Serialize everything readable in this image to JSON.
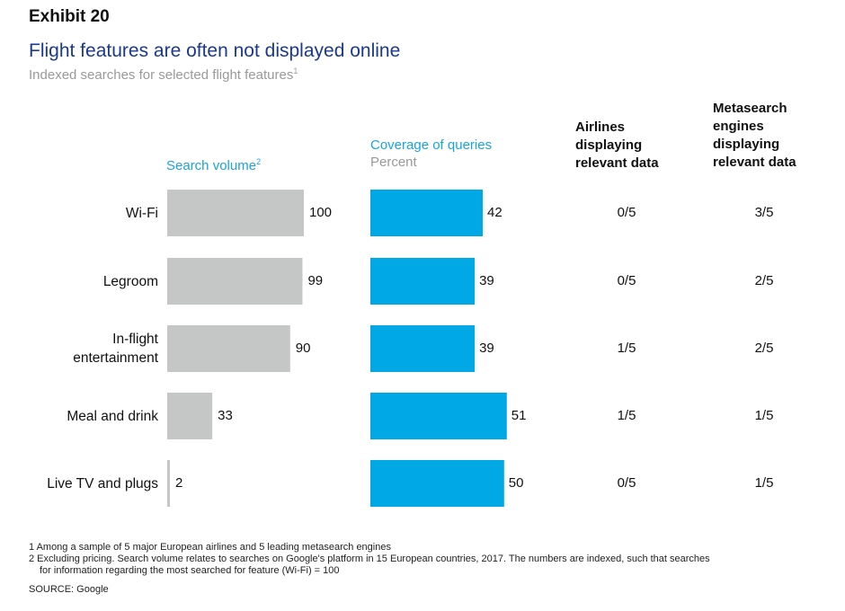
{
  "exhibit_label": "Exhibit 20",
  "title": "Flight features are often not displayed online",
  "subtitle": "Indexed searches for selected flight features",
  "subtitle_sup": "1",
  "headers": {
    "search_volume": "Search volume",
    "search_volume_sup": "2",
    "coverage_line1": "Coverage of queries",
    "coverage_line2": "Percent",
    "airlines": [
      "Airlines",
      "displaying",
      "relevant data"
    ],
    "metasearch": [
      "Metasearch",
      "engines",
      "displaying",
      "relevant data"
    ]
  },
  "colors": {
    "search_bar": "#c5c7c6",
    "coverage_bar": "#00a9e6",
    "title": "#1a3a8f",
    "accent_text": "#1aa3e0"
  },
  "chart_data": {
    "type": "bar",
    "orientation": "horizontal",
    "categories": [
      [
        "Wi-Fi"
      ],
      [
        "Legroom"
      ],
      [
        "In-flight",
        "entertainment"
      ],
      [
        "Meal and drink"
      ],
      [
        "Live TV and plugs"
      ]
    ],
    "series": [
      {
        "name": "Search volume",
        "values": [
          100,
          99,
          90,
          33,
          2
        ]
      },
      {
        "name": "Coverage of queries",
        "values": [
          42,
          39,
          39,
          51,
          50
        ]
      }
    ],
    "table_columns": [
      {
        "name": "Airlines displaying relevant data",
        "values": [
          "0/5",
          "0/5",
          "1/5",
          "1/5",
          "0/5"
        ]
      },
      {
        "name": "Metasearch engines displaying relevant data",
        "values": [
          "3/5",
          "2/5",
          "2/5",
          "1/5",
          "1/5"
        ]
      }
    ]
  },
  "footnotes": [
    "1 Among a sample of 5 major European airlines and 5 leading metasearch engines",
    "2 Excluding pricing. Search volume relates to searches on Google's platform in 15 European countries, 2017. The numbers are indexed, such that searches",
    "for information regarding the most searched for feature (Wi-Fi) = 100"
  ],
  "source": "SOURCE: Google"
}
